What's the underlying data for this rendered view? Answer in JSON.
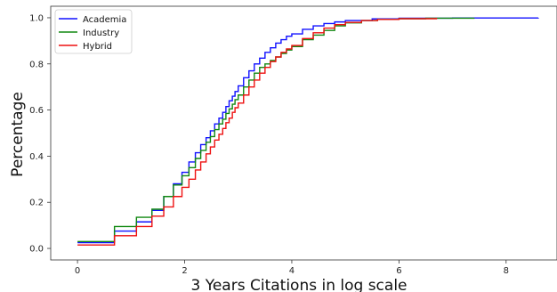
{
  "chart_data": {
    "type": "line",
    "step": true,
    "xlabel": "3 Years Citations in log scale",
    "ylabel": "Percentage",
    "xlim": [
      -0.5,
      8.95
    ],
    "ylim": [
      -0.05,
      1.05
    ],
    "xticks": [
      0,
      2,
      4,
      6,
      8
    ],
    "yticks": [
      0.0,
      0.2,
      0.4,
      0.6,
      0.8,
      1.0
    ],
    "xtick_labels": [
      "0",
      "2",
      "4",
      "6",
      "8"
    ],
    "ytick_labels": [
      "0.0",
      "0.2",
      "0.4",
      "0.6",
      "0.8",
      "1.0"
    ],
    "grid": false,
    "legend_position": "upper-left",
    "series": [
      {
        "name": "Academia",
        "color": "#1010ff",
        "points": [
          [
            0,
            0.025
          ],
          [
            0.69,
            0.075
          ],
          [
            1.1,
            0.115
          ],
          [
            1.39,
            0.165
          ],
          [
            1.61,
            0.225
          ],
          [
            1.79,
            0.28
          ],
          [
            1.95,
            0.33
          ],
          [
            2.08,
            0.375
          ],
          [
            2.2,
            0.415
          ],
          [
            2.3,
            0.45
          ],
          [
            2.4,
            0.48
          ],
          [
            2.48,
            0.51
          ],
          [
            2.56,
            0.54
          ],
          [
            2.64,
            0.565
          ],
          [
            2.71,
            0.59
          ],
          [
            2.77,
            0.615
          ],
          [
            2.83,
            0.64
          ],
          [
            2.89,
            0.66
          ],
          [
            2.94,
            0.68
          ],
          [
            3.0,
            0.705
          ],
          [
            3.1,
            0.74
          ],
          [
            3.2,
            0.77
          ],
          [
            3.3,
            0.8
          ],
          [
            3.4,
            0.825
          ],
          [
            3.5,
            0.85
          ],
          [
            3.6,
            0.87
          ],
          [
            3.7,
            0.89
          ],
          [
            3.8,
            0.905
          ],
          [
            3.9,
            0.92
          ],
          [
            4.0,
            0.93
          ],
          [
            4.2,
            0.95
          ],
          [
            4.4,
            0.965
          ],
          [
            4.6,
            0.975
          ],
          [
            4.8,
            0.982
          ],
          [
            5.0,
            0.988
          ],
          [
            5.5,
            0.995
          ],
          [
            6.0,
            0.998
          ],
          [
            7.0,
            0.999
          ],
          [
            8.6,
            1.0
          ]
        ]
      },
      {
        "name": "Industry",
        "color": "#118811",
        "points": [
          [
            0,
            0.03
          ],
          [
            0.69,
            0.095
          ],
          [
            1.1,
            0.135
          ],
          [
            1.39,
            0.17
          ],
          [
            1.61,
            0.225
          ],
          [
            1.79,
            0.275
          ],
          [
            1.95,
            0.315
          ],
          [
            2.08,
            0.35
          ],
          [
            2.2,
            0.39
          ],
          [
            2.3,
            0.425
          ],
          [
            2.4,
            0.46
          ],
          [
            2.48,
            0.485
          ],
          [
            2.56,
            0.515
          ],
          [
            2.64,
            0.54
          ],
          [
            2.71,
            0.56
          ],
          [
            2.77,
            0.585
          ],
          [
            2.83,
            0.605
          ],
          [
            2.89,
            0.625
          ],
          [
            2.94,
            0.645
          ],
          [
            3.0,
            0.665
          ],
          [
            3.1,
            0.7
          ],
          [
            3.2,
            0.73
          ],
          [
            3.3,
            0.76
          ],
          [
            3.4,
            0.785
          ],
          [
            3.5,
            0.8
          ],
          [
            3.6,
            0.815
          ],
          [
            3.7,
            0.83
          ],
          [
            3.8,
            0.845
          ],
          [
            3.9,
            0.86
          ],
          [
            4.0,
            0.875
          ],
          [
            4.2,
            0.905
          ],
          [
            4.4,
            0.925
          ],
          [
            4.6,
            0.945
          ],
          [
            4.8,
            0.965
          ],
          [
            5.0,
            0.978
          ],
          [
            5.3,
            0.988
          ],
          [
            5.6,
            0.993
          ],
          [
            6.0,
            0.996
          ],
          [
            6.5,
            0.998
          ],
          [
            7.4,
            1.0
          ]
        ]
      },
      {
        "name": "Hybrid",
        "color": "#ee1111",
        "points": [
          [
            0,
            0.015
          ],
          [
            0.69,
            0.055
          ],
          [
            1.1,
            0.095
          ],
          [
            1.39,
            0.14
          ],
          [
            1.61,
            0.18
          ],
          [
            1.79,
            0.225
          ],
          [
            1.95,
            0.265
          ],
          [
            2.08,
            0.3
          ],
          [
            2.2,
            0.34
          ],
          [
            2.3,
            0.375
          ],
          [
            2.4,
            0.41
          ],
          [
            2.48,
            0.44
          ],
          [
            2.56,
            0.47
          ],
          [
            2.64,
            0.495
          ],
          [
            2.71,
            0.52
          ],
          [
            2.77,
            0.545
          ],
          [
            2.83,
            0.565
          ],
          [
            2.89,
            0.59
          ],
          [
            2.94,
            0.61
          ],
          [
            3.0,
            0.63
          ],
          [
            3.1,
            0.665
          ],
          [
            3.2,
            0.7
          ],
          [
            3.3,
            0.73
          ],
          [
            3.4,
            0.76
          ],
          [
            3.5,
            0.785
          ],
          [
            3.6,
            0.81
          ],
          [
            3.7,
            0.83
          ],
          [
            3.8,
            0.85
          ],
          [
            3.9,
            0.865
          ],
          [
            4.0,
            0.88
          ],
          [
            4.2,
            0.91
          ],
          [
            4.4,
            0.935
          ],
          [
            4.6,
            0.955
          ],
          [
            4.8,
            0.97
          ],
          [
            5.0,
            0.98
          ],
          [
            5.3,
            0.988
          ],
          [
            5.6,
            0.993
          ],
          [
            6.0,
            0.996
          ],
          [
            6.7,
            1.0
          ]
        ]
      }
    ]
  }
}
